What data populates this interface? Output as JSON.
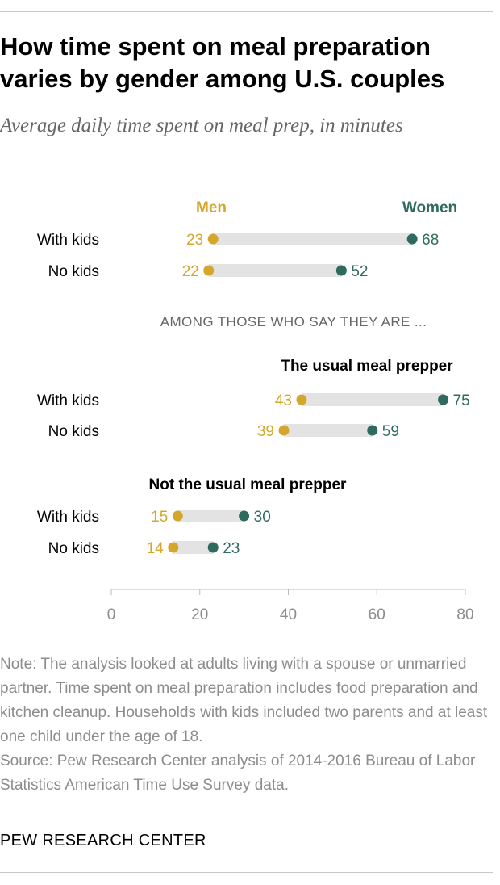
{
  "title": "How time spent on meal preparation varies by gender among U.S. couples",
  "subtitle": "Average daily time spent on meal prep, in minutes",
  "colors": {
    "men": "#d4a72c",
    "women": "#2e6b5e",
    "bar": "#e3e3e3",
    "axis": "#bbbbbb",
    "tick": "#8c8c8c",
    "text": "#000000",
    "caption": "#666666"
  },
  "chart_data": {
    "type": "dot",
    "legend": {
      "men": "Men",
      "women": "Women"
    },
    "xlim": [
      0,
      80
    ],
    "ticks": [
      0,
      20,
      40,
      60,
      80
    ],
    "caption": "AMONG THOSE WHO SAY THEY ARE ...",
    "groups": [
      {
        "label": "",
        "rows": [
          {
            "label": "With kids",
            "men": 23,
            "women": 68
          },
          {
            "label": "No kids",
            "men": 22,
            "women": 52
          }
        ]
      },
      {
        "label": "The usual meal prepper",
        "rows": [
          {
            "label": "With kids",
            "men": 43,
            "women": 75
          },
          {
            "label": "No kids",
            "men": 39,
            "women": 59
          }
        ]
      },
      {
        "label": "Not the usual meal prepper",
        "rows": [
          {
            "label": "With kids",
            "men": 15,
            "women": 30
          },
          {
            "label": "No kids",
            "men": 14,
            "women": 23
          }
        ]
      }
    ]
  },
  "note": "Note: The analysis looked at adults living with a spouse or unmarried partner. Time spent on meal preparation includes food preparation and kitchen cleanup. Households with kids included two parents and at least one child under the age of 18.",
  "source": "Source: Pew Research Center analysis of 2014-2016 Bureau of Labor Statistics American Time Use Survey data.",
  "credit": "PEW RESEARCH CENTER"
}
